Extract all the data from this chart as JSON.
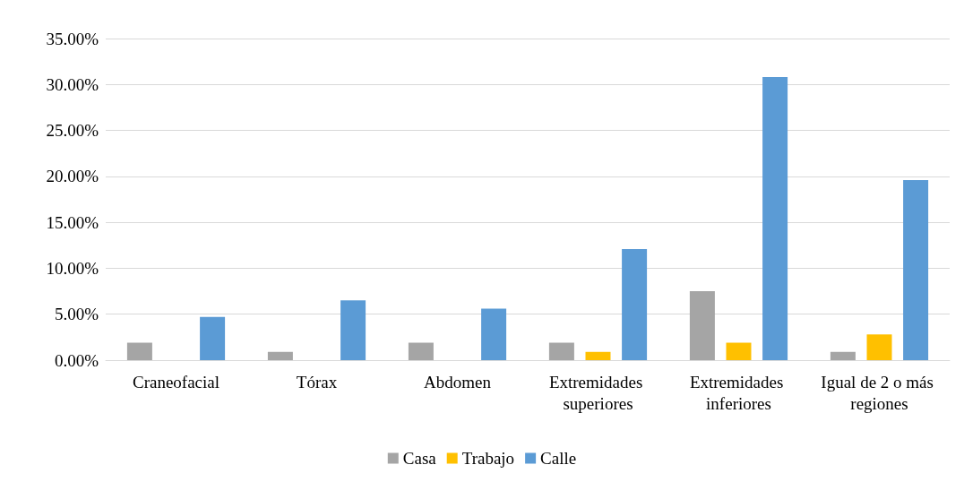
{
  "chart_data": {
    "type": "bar",
    "categories": [
      "Craneofacial",
      "Tórax",
      "Abdomen",
      "Extremidades superiores",
      "Extremidades inferiores",
      "Igual de 2 o más regiones"
    ],
    "series": [
      {
        "name": "Casa",
        "color": "#a5a5a5",
        "values": [
          1.9,
          0.9,
          1.9,
          1.9,
          7.5,
          0.9
        ]
      },
      {
        "name": "Trabajo",
        "color": "#ffc000",
        "values": [
          0,
          0,
          0,
          0.9,
          1.9,
          2.8
        ]
      },
      {
        "name": "Calle",
        "color": "#5b9bd5",
        "values": [
          4.7,
          6.5,
          5.6,
          12.1,
          30.8,
          19.6
        ]
      }
    ],
    "ylim": [
      0,
      35
    ],
    "yticks": [
      {
        "value": 0,
        "label": "0.00%"
      },
      {
        "value": 5,
        "label": "5.00%"
      },
      {
        "value": 10,
        "label": "10.00%"
      },
      {
        "value": 15,
        "label": "15.00%"
      },
      {
        "value": 20,
        "label": "20.00%"
      },
      {
        "value": 25,
        "label": "25.00%"
      },
      {
        "value": 30,
        "label": "30.00%"
      },
      {
        "value": 35,
        "label": "35.00%"
      }
    ],
    "grid": "y",
    "legend": "bottom"
  }
}
